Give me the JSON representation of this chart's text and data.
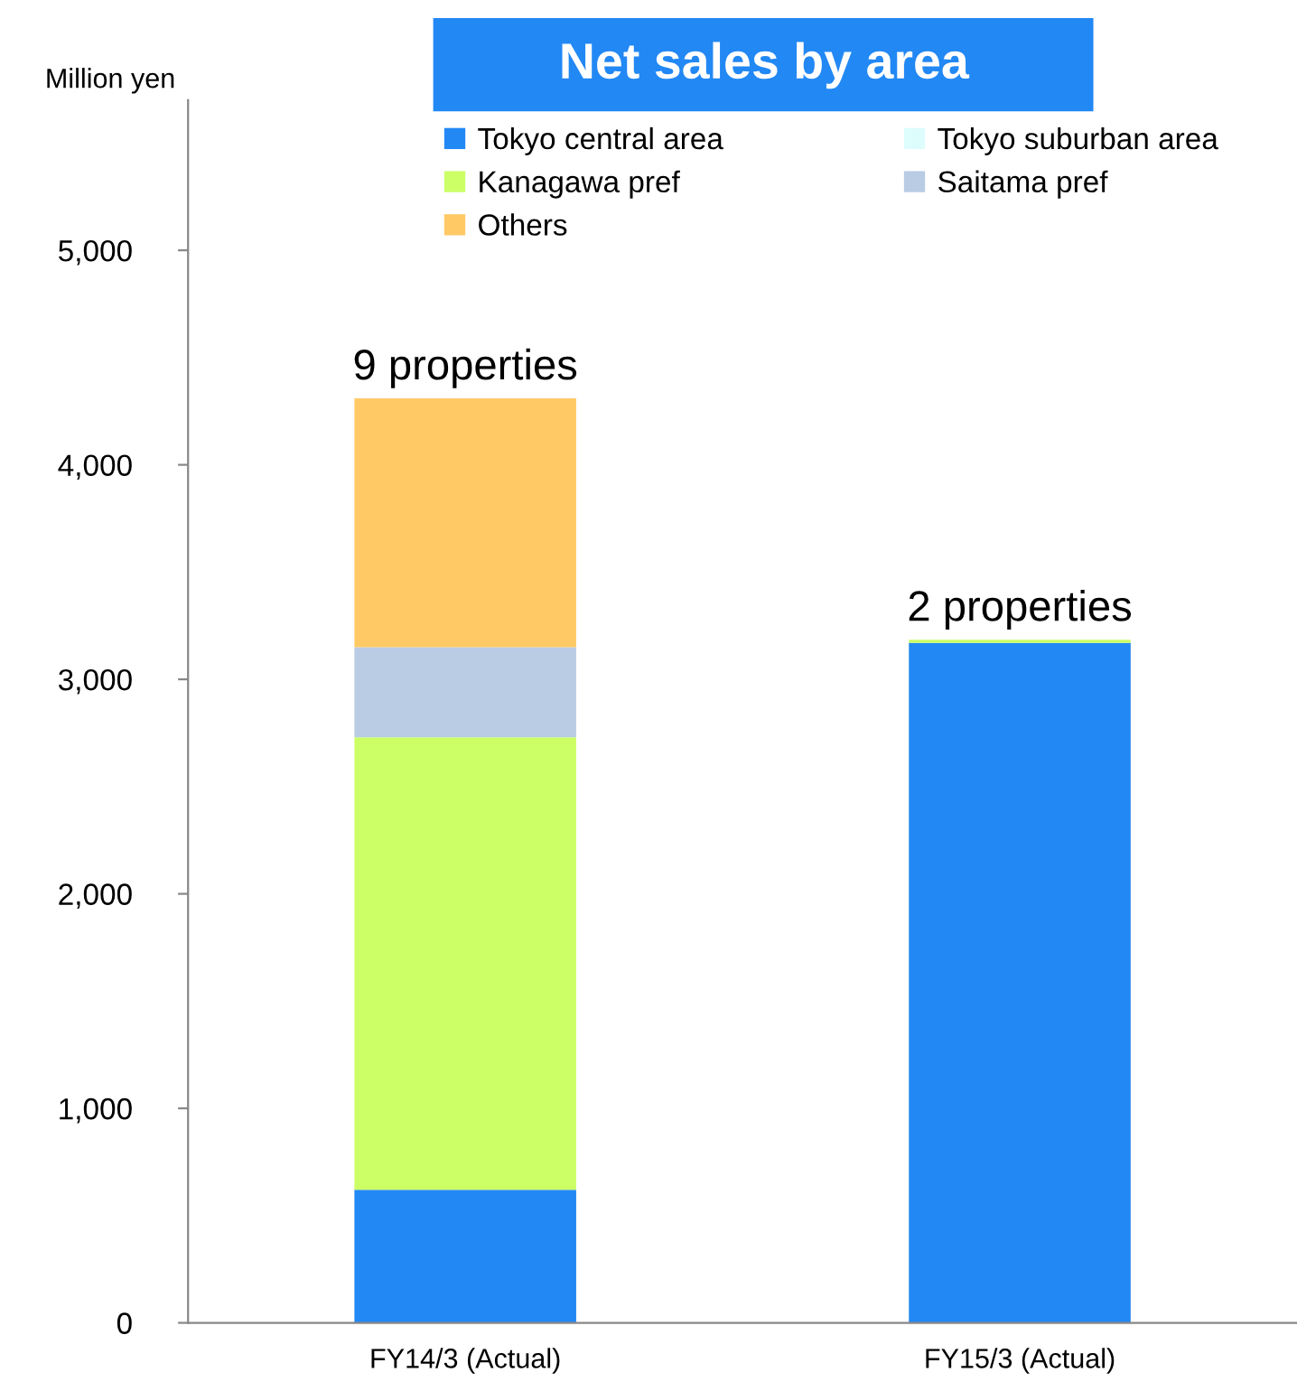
{
  "chart_data": {
    "type": "bar",
    "title": "Net sales by area",
    "ylabel": "Million yen",
    "stacked": true,
    "categories": [
      "FY14/3 (Actual)",
      "FY15/3 (Actual)"
    ],
    "series": [
      {
        "name": "Tokyo central area",
        "color": "#2288f4",
        "values": [
          620,
          3170
        ]
      },
      {
        "name": "Tokyo suburban area",
        "color": "#ddfcfc",
        "values": [
          0,
          0
        ]
      },
      {
        "name": "Kanagawa pref",
        "color": "#ccff66",
        "values": [
          2110,
          15
        ]
      },
      {
        "name": "Saitama pref",
        "color": "#b9cce4",
        "values": [
          420,
          0
        ]
      },
      {
        "name": "Others",
        "color": "#ffc966",
        "values": [
          1160,
          0
        ]
      }
    ],
    "ylim": [
      0,
      5700
    ],
    "yticks": [
      {
        "value": 0,
        "label": "0"
      },
      {
        "value": 1000,
        "label": "1,000"
      },
      {
        "value": 2000,
        "label": "2,000"
      },
      {
        "value": 3000,
        "label": "3,000"
      },
      {
        "value": 4000,
        "label": "4,000"
      },
      {
        "value": 5000,
        "label": "5,000"
      }
    ],
    "annotations": [
      {
        "text": "9 properties",
        "x": "FY14/3 (Actual)",
        "y": 4310
      },
      {
        "text": "2 properties",
        "x": "FY15/3 (Actual)",
        "y": 3185
      }
    ],
    "legend": "top",
    "grid": false
  }
}
